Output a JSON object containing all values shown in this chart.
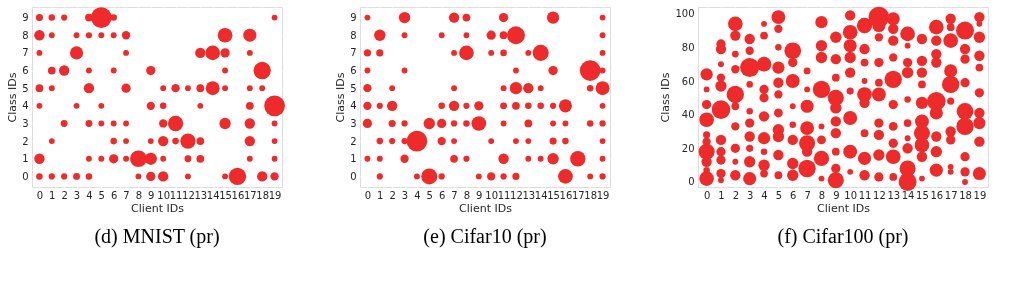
{
  "chart_data": [
    {
      "type": "bubble",
      "title": "(d)  MNIST (pr)",
      "xlabel": "Client IDs",
      "ylabel": "Class IDs",
      "xlim": [
        -0.6,
        19.6
      ],
      "xticks": [
        0,
        1,
        2,
        3,
        4,
        5,
        6,
        7,
        8,
        9,
        10,
        11,
        12,
        13,
        14,
        15,
        16,
        17,
        18,
        19
      ],
      "ylim": [
        -0.6,
        9.6
      ],
      "yticks": [
        0,
        1,
        2,
        3,
        4,
        5,
        6,
        7,
        8,
        9
      ],
      "grid": true,
      "series": [
        {
          "color": "#ee2a2a",
          "x": [
            0,
            1,
            2,
            4,
            5,
            6,
            19
          ],
          "values": [
            9,
            9,
            9,
            9,
            9,
            9,
            9
          ],
          "sizes": [
            0.12,
            0.1,
            0.09,
            0.14,
            1.0,
            0.1,
            0.08
          ]
        },
        {
          "color": "#ee2a2a",
          "x": [
            0,
            1,
            3,
            4,
            5,
            6,
            7,
            15,
            17
          ],
          "values": [
            8,
            8,
            8,
            8,
            8,
            8,
            8,
            8,
            8
          ],
          "sizes": [
            0.25,
            0.08,
            0.08,
            0.09,
            0.08,
            0.08,
            0.16,
            0.5,
            0.4
          ]
        },
        {
          "color": "#ee2a2a",
          "x": [
            0,
            3,
            7,
            13,
            14,
            15,
            17
          ],
          "values": [
            7,
            7,
            7,
            7,
            7,
            7,
            7
          ],
          "sizes": [
            0.08,
            0.4,
            0.08,
            0.25,
            0.5,
            0.2,
            0.08
          ]
        },
        {
          "color": "#ee2a2a",
          "x": [
            1,
            2,
            4,
            6,
            9,
            15,
            18
          ],
          "values": [
            6,
            6,
            6,
            6,
            6,
            6,
            6
          ],
          "sizes": [
            0.14,
            0.25,
            0.08,
            0.08,
            0.2,
            0.08,
            0.7
          ]
        },
        {
          "color": "#ee2a2a",
          "x": [
            0,
            1,
            4,
            7,
            10,
            11,
            12,
            13,
            14,
            15,
            17,
            18
          ],
          "values": [
            5,
            5,
            5,
            5,
            5,
            5,
            5,
            5,
            5,
            5,
            5,
            5
          ],
          "sizes": [
            0.14,
            0.08,
            0.25,
            0.2,
            0.08,
            0.16,
            0.08,
            0.14,
            0.45,
            0.08,
            0.08,
            0.08
          ]
        },
        {
          "color": "#ee2a2a",
          "x": [
            0,
            3,
            5,
            9,
            10,
            13,
            17,
            19
          ],
          "values": [
            4,
            4,
            4,
            4,
            4,
            4,
            4,
            4
          ],
          "sizes": [
            0.08,
            0.08,
            0.08,
            0.16,
            0.1,
            0.08,
            0.14,
            1.0
          ]
        },
        {
          "color": "#ee2a2a",
          "x": [
            2,
            4,
            5,
            6,
            7,
            10,
            11,
            15,
            17,
            19
          ],
          "values": [
            3,
            3,
            3,
            3,
            3,
            3,
            3,
            3,
            3,
            3
          ],
          "sizes": [
            0.11,
            0.11,
            0.08,
            0.08,
            0.08,
            0.16,
            0.55,
            0.3,
            0.25,
            0.08
          ]
        },
        {
          "color": "#ee2a2a",
          "x": [
            1,
            6,
            7,
            9,
            10,
            11,
            12,
            13,
            17,
            19
          ],
          "values": [
            2,
            2,
            2,
            2,
            2,
            2,
            2,
            2,
            2,
            2
          ],
          "sizes": [
            0.08,
            0.1,
            0.08,
            0.08,
            0.25,
            0.1,
            0.55,
            0.14,
            0.25,
            0.08
          ]
        },
        {
          "color": "#ee2a2a",
          "x": [
            0,
            4,
            5,
            6,
            7,
            8,
            9,
            10,
            12,
            13,
            17,
            19
          ],
          "values": [
            1,
            1,
            1,
            1,
            1,
            1,
            1,
            1,
            1,
            1,
            1,
            1
          ],
          "sizes": [
            0.25,
            0.08,
            0.08,
            0.2,
            0.08,
            0.65,
            0.35,
            0.08,
            0.11,
            0.14,
            0.08,
            0.08
          ]
        },
        {
          "color": "#ee2a2a",
          "x": [
            0,
            1,
            2,
            3,
            4,
            8,
            9,
            10,
            12,
            15,
            16,
            18,
            19
          ],
          "values": [
            0,
            0,
            0,
            0,
            0,
            0,
            0,
            0,
            0,
            0,
            0,
            0,
            0
          ],
          "sizes": [
            0.1,
            0.09,
            0.09,
            0.11,
            0.1,
            0.08,
            0.2,
            0.25,
            0.08,
            0.08,
            0.7,
            0.25,
            0.16
          ]
        }
      ]
    },
    {
      "type": "bubble",
      "title": "(e)  Cifar10 (pr)",
      "xlabel": "Client IDs",
      "ylabel": "Class IDs",
      "xlim": [
        -0.6,
        19.6
      ],
      "xticks": [
        0,
        1,
        2,
        3,
        4,
        5,
        6,
        7,
        8,
        9,
        10,
        11,
        12,
        13,
        14,
        15,
        16,
        17,
        18,
        19
      ],
      "ylim": [
        -0.6,
        9.6
      ],
      "yticks": [
        0,
        1,
        2,
        3,
        4,
        5,
        6,
        7,
        8,
        9
      ],
      "grid": true,
      "series": [
        {
          "color": "#ee2a2a",
          "x": [
            0,
            3,
            7,
            8,
            11,
            15,
            19
          ],
          "values": [
            9,
            9,
            9,
            9,
            9,
            9,
            9
          ],
          "sizes": [
            0.08,
            0.3,
            0.25,
            0.14,
            0.2,
            0.35,
            0.08
          ]
        },
        {
          "color": "#ee2a2a",
          "x": [
            1,
            3,
            6,
            8,
            10,
            11,
            12,
            19
          ],
          "values": [
            8,
            8,
            8,
            8,
            8,
            8,
            8,
            8
          ],
          "sizes": [
            0.3,
            0.08,
            0.08,
            0.08,
            0.2,
            0.14,
            0.75,
            0.08
          ]
        },
        {
          "color": "#ee2a2a",
          "x": [
            0,
            1,
            7,
            8,
            10,
            11,
            13,
            14,
            19
          ],
          "values": [
            7,
            7,
            7,
            7,
            7,
            7,
            7,
            7,
            7
          ],
          "sizes": [
            0.12,
            0.12,
            0.08,
            0.5,
            0.08,
            0.1,
            0.08,
            0.6,
            0.08
          ]
        },
        {
          "color": "#ee2a2a",
          "x": [
            0,
            3,
            12,
            15,
            18,
            19
          ],
          "values": [
            6,
            6,
            6,
            6,
            6,
            6
          ],
          "sizes": [
            0.08,
            0.08,
            0.08,
            0.2,
            1.0,
            0.08
          ]
        },
        {
          "color": "#ee2a2a",
          "x": [
            0,
            2,
            7,
            11,
            12,
            13,
            14,
            18,
            19
          ],
          "values": [
            5,
            5,
            5,
            5,
            5,
            5,
            5,
            5,
            5
          ],
          "sizes": [
            0.16,
            0.08,
            0.08,
            0.08,
            0.35,
            0.25,
            0.08,
            0.1,
            0.45
          ]
        },
        {
          "color": "#ee2a2a",
          "x": [
            0,
            1,
            2,
            6,
            7,
            8,
            9,
            11,
            12,
            13,
            14,
            15,
            16,
            19
          ],
          "values": [
            4,
            4,
            4,
            4,
            4,
            4,
            4,
            4,
            4,
            4,
            4,
            4,
            4,
            4
          ],
          "sizes": [
            0.16,
            0.09,
            0.25,
            0.1,
            0.25,
            0.09,
            0.2,
            0.11,
            0.14,
            0.1,
            0.1,
            0.09,
            0.4,
            0.08
          ]
        },
        {
          "color": "#ee2a2a",
          "x": [
            0,
            2,
            3,
            5,
            6,
            7,
            8,
            9,
            11,
            13,
            15,
            16,
            18,
            19
          ],
          "values": [
            3,
            3,
            3,
            3,
            3,
            3,
            3,
            3,
            3,
            3,
            3,
            3,
            3,
            3
          ],
          "sizes": [
            0.2,
            0.12,
            0.09,
            0.3,
            0.2,
            0.09,
            0.1,
            0.5,
            0.08,
            0.14,
            0.08,
            0.08,
            0.1,
            0.09
          ]
        },
        {
          "color": "#ee2a2a",
          "x": [
            1,
            2,
            3,
            4,
            6,
            7,
            10,
            12,
            13,
            15,
            16,
            19
          ],
          "values": [
            2,
            2,
            2,
            2,
            2,
            2,
            2,
            2,
            2,
            2,
            2,
            2
          ],
          "sizes": [
            0.1,
            0.09,
            0.09,
            1.0,
            0.16,
            0.08,
            0.08,
            0.08,
            0.08,
            0.12,
            0.1,
            0.08
          ]
        },
        {
          "color": "#ee2a2a",
          "x": [
            0,
            1,
            3,
            7,
            8,
            11,
            13,
            14,
            15,
            17,
            19
          ],
          "values": [
            1,
            1,
            1,
            1,
            1,
            1,
            1,
            1,
            1,
            1,
            1
          ],
          "sizes": [
            0.08,
            0.08,
            0.16,
            0.14,
            0.09,
            0.25,
            0.08,
            0.08,
            0.3,
            0.55,
            0.08
          ]
        },
        {
          "color": "#ee2a2a",
          "x": [
            1,
            4,
            5,
            6,
            9,
            10,
            11,
            12,
            16,
            18,
            19
          ],
          "values": [
            0,
            0,
            0,
            0,
            0,
            0,
            0,
            0,
            0,
            0,
            0
          ],
          "sizes": [
            0.09,
            0.08,
            0.6,
            0.09,
            0.08,
            0.16,
            0.09,
            0.12,
            0.5,
            0.08,
            0.09
          ]
        }
      ]
    },
    {
      "type": "bubble",
      "title": "(f)  Cifar100 (pr)",
      "xlabel": "Client IDs",
      "ylabel": "Class IDs",
      "xlim": [
        -0.6,
        19.6
      ],
      "xticks": [
        0,
        1,
        2,
        3,
        4,
        5,
        6,
        7,
        8,
        9,
        10,
        11,
        12,
        13,
        14,
        15,
        16,
        17,
        18,
        19
      ],
      "ylim": [
        -3,
        104
      ],
      "yticks": [
        0,
        20,
        40,
        60,
        80,
        100
      ],
      "grid": true,
      "series": [
        {
          "color": "#ee2a2a",
          "x": [
            0,
            0,
            0,
            0,
            0,
            0,
            0,
            0,
            0,
            0
          ],
          "values": [
            64,
            55,
            46,
            37,
            28,
            24,
            18,
            12,
            7,
            2
          ],
          "sizes": [
            0.35,
            0.08,
            0.2,
            0.5,
            0.12,
            0.16,
            0.6,
            0.25,
            0.1,
            0.5
          ]
        },
        {
          "color": "#ee2a2a",
          "x": [
            1,
            1,
            1,
            1,
            1,
            1,
            1,
            1,
            1,
            1,
            1
          ],
          "values": [
            82,
            79,
            70,
            62,
            57,
            43,
            25,
            18,
            13,
            5,
            1
          ],
          "sizes": [
            0.2,
            0.25,
            0.08,
            0.16,
            0.3,
            0.8,
            0.25,
            0.2,
            0.2,
            0.2,
            0.08
          ]
        },
        {
          "color": "#ee2a2a",
          "x": [
            2,
            2,
            2,
            2,
            2,
            2,
            2,
            2,
            2,
            2
          ],
          "values": [
            94,
            87,
            76,
            67,
            52,
            45,
            33,
            20,
            12,
            4
          ],
          "sizes": [
            0.5,
            0.25,
            0.11,
            0.16,
            0.7,
            0.14,
            0.16,
            0.2,
            0.08,
            0.25
          ]
        },
        {
          "color": "#ee2a2a",
          "x": [
            3,
            3,
            3,
            3,
            3,
            3,
            3,
            3,
            3,
            3
          ],
          "values": [
            85,
            78,
            68,
            58,
            42,
            35,
            27,
            20,
            12,
            2
          ],
          "sizes": [
            0.25,
            0.16,
            0.85,
            0.1,
            0.1,
            0.2,
            0.25,
            0.12,
            0.3,
            0.4
          ]
        },
        {
          "color": "#ee2a2a",
          "x": [
            4,
            4,
            4,
            4,
            4,
            4,
            4,
            4,
            4,
            4
          ],
          "values": [
            94,
            87,
            70,
            55,
            50,
            39,
            26,
            18,
            10,
            5
          ],
          "sizes": [
            0.08,
            0.14,
            0.5,
            0.2,
            0.2,
            0.25,
            0.35,
            0.1,
            0.3,
            0.14
          ]
        },
        {
          "color": "#ee2a2a",
          "x": [
            5,
            5,
            5,
            5,
            5,
            5,
            5,
            5,
            5,
            5,
            5
          ],
          "values": [
            98,
            91,
            80,
            68,
            59,
            52,
            41,
            31,
            27,
            16,
            4
          ],
          "sizes": [
            0.45,
            0.16,
            0.1,
            0.35,
            0.25,
            0.16,
            0.18,
            0.3,
            0.3,
            0.25,
            0.14
          ]
        },
        {
          "color": "#ee2a2a",
          "x": [
            6,
            6,
            6,
            6,
            6,
            6,
            6,
            6
          ],
          "values": [
            78,
            71,
            60,
            45,
            34,
            25,
            11,
            4
          ],
          "sizes": [
            0.65,
            0.2,
            0.45,
            0.08,
            0.1,
            0.25,
            0.3,
            0.3
          ]
        },
        {
          "color": "#ee2a2a",
          "x": [
            7,
            7,
            7,
            7,
            7,
            7,
            7
          ],
          "values": [
            66,
            55,
            45,
            32,
            23,
            18,
            8
          ],
          "sizes": [
            0.11,
            0.08,
            0.4,
            0.45,
            0.6,
            0.25,
            0.7
          ]
        },
        {
          "color": "#ee2a2a",
          "x": [
            8,
            8,
            8,
            8,
            8,
            8,
            8,
            8
          ],
          "values": [
            95,
            81,
            74,
            55,
            33,
            25,
            14,
            2
          ],
          "sizes": [
            0.35,
            0.3,
            0.3,
            0.7,
            0.08,
            0.18,
            0.55,
            0.08
          ]
        },
        {
          "color": "#ee2a2a",
          "x": [
            9,
            9,
            9,
            9,
            9,
            9,
            9,
            9,
            9,
            9
          ],
          "values": [
            86,
            73,
            62,
            50,
            44,
            36,
            29,
            18,
            8,
            1
          ],
          "sizes": [
            0.3,
            0.25,
            0.14,
            0.6,
            0.3,
            0.25,
            0.25,
            0.14,
            0.2,
            0.6
          ]
        },
        {
          "color": "#ee2a2a",
          "x": [
            10,
            10,
            10,
            10,
            10,
            10,
            10,
            10,
            10
          ],
          "values": [
            99,
            89,
            81,
            74,
            65,
            54,
            38,
            18,
            6
          ],
          "sizes": [
            0.25,
            0.5,
            0.4,
            0.3,
            0.25,
            0.12,
            0.45,
            0.45,
            0.08
          ]
        },
        {
          "color": "#ee2a2a",
          "x": [
            11,
            11,
            11,
            11,
            11,
            11,
            11,
            11,
            11
          ],
          "values": [
            93,
            79,
            71,
            60,
            52,
            47,
            29,
            14,
            4
          ],
          "sizes": [
            0.55,
            0.25,
            0.14,
            0.08,
            0.5,
            0.25,
            0.14,
            0.4,
            0.25
          ]
        },
        {
          "color": "#ee2a2a",
          "x": [
            12,
            12,
            12,
            12,
            12,
            12,
            12,
            12,
            12,
            12
          ],
          "values": [
            98,
            93,
            86,
            71,
            59,
            52,
            35,
            28,
            16,
            3
          ],
          "sizes": [
            1.0,
            0.4,
            0.16,
            0.2,
            0.14,
            0.45,
            0.2,
            0.25,
            0.3,
            0.2
          ]
        },
        {
          "color": "#ee2a2a",
          "x": [
            13,
            13,
            13,
            13,
            13,
            13,
            13,
            13,
            13,
            13
          ],
          "values": [
            97,
            91,
            84,
            74,
            61,
            46,
            33,
            23,
            15,
            3
          ],
          "sizes": [
            0.4,
            0.25,
            0.25,
            0.16,
            0.7,
            0.2,
            0.18,
            0.2,
            0.5,
            0.14
          ]
        },
        {
          "color": "#ee2a2a",
          "x": [
            14,
            14,
            14,
            14,
            14,
            14,
            14,
            14,
            14,
            14
          ],
          "values": [
            88,
            81,
            71,
            65,
            49,
            35,
            26,
            20,
            8,
            0
          ],
          "sizes": [
            0.5,
            0.08,
            0.2,
            0.3,
            0.1,
            0.14,
            0.08,
            0.25,
            0.6,
            0.75
          ]
        },
        {
          "color": "#ee2a2a",
          "x": [
            15,
            15,
            15,
            15,
            15,
            15,
            15,
            15,
            15,
            15
          ],
          "values": [
            85,
            72,
            65,
            58,
            47,
            36,
            29,
            22,
            15,
            2
          ],
          "sizes": [
            0.25,
            0.25,
            0.25,
            0.14,
            0.35,
            0.45,
            0.6,
            0.5,
            0.25,
            0.08
          ]
        },
        {
          "color": "#ee2a2a",
          "x": [
            16,
            16,
            16,
            16,
            16,
            16,
            16,
            16,
            16
          ],
          "values": [
            92,
            84,
            76,
            71,
            48,
            41,
            27,
            18,
            7
          ],
          "sizes": [
            0.5,
            0.25,
            0.25,
            0.25,
            0.8,
            0.4,
            0.25,
            0.3,
            0.4
          ]
        },
        {
          "color": "#ee2a2a",
          "x": [
            17,
            17,
            17,
            17,
            17,
            17,
            17,
            17,
            17,
            17
          ],
          "values": [
            97,
            92,
            84,
            66,
            58,
            48,
            30,
            25,
            9,
            6
          ],
          "sizes": [
            0.25,
            0.14,
            0.5,
            0.4,
            0.7,
            0.12,
            0.25,
            0.2,
            0.08,
            0.08
          ]
        },
        {
          "color": "#ee2a2a",
          "x": [
            18,
            18,
            18,
            18,
            18,
            18,
            18,
            18,
            18
          ],
          "values": [
            90,
            79,
            73,
            59,
            42,
            33,
            15,
            6,
            0
          ],
          "sizes": [
            0.75,
            0.25,
            0.2,
            0.2,
            0.65,
            0.7,
            0.2,
            0.2,
            0.08
          ]
        },
        {
          "color": "#ee2a2a",
          "x": [
            19,
            19,
            19,
            19,
            19,
            19,
            19,
            19,
            19,
            19
          ],
          "values": [
            98,
            94,
            86,
            75,
            68,
            53,
            41,
            35,
            24,
            5
          ],
          "sizes": [
            0.25,
            0.08,
            0.3,
            0.25,
            0.14,
            0.2,
            0.25,
            0.35,
            0.25,
            0.4
          ]
        }
      ]
    }
  ]
}
